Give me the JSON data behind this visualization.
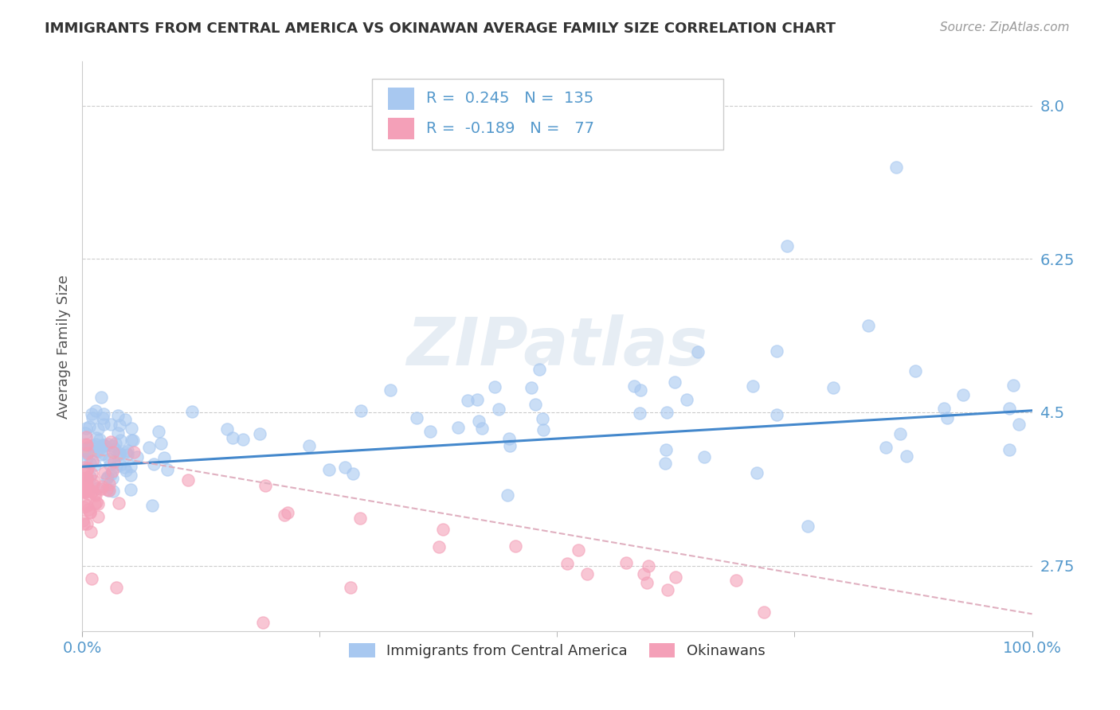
{
  "title": "IMMIGRANTS FROM CENTRAL AMERICA VS OKINAWAN AVERAGE FAMILY SIZE CORRELATION CHART",
  "source": "Source: ZipAtlas.com",
  "ylabel": "Average Family Size",
  "xlim": [
    0,
    1
  ],
  "ylim": [
    2.0,
    8.5
  ],
  "yticks": [
    2.75,
    4.5,
    6.25,
    8.0
  ],
  "xticklabels": [
    "0.0%",
    "100.0%"
  ],
  "watermark": "ZIPatlas",
  "legend1_label": "Immigrants from Central America",
  "legend2_label": "Okinawans",
  "R1": 0.245,
  "N1": 135,
  "R2": -0.189,
  "N2": 77,
  "color_blue": "#a8c8f0",
  "color_pink": "#f4a0b8",
  "line_color_blue": "#4488cc",
  "line_color_pink": "#e0b0c0",
  "background": "#ffffff",
  "grid_color": "#cccccc",
  "title_color": "#333333",
  "axis_label_color": "#555555",
  "tick_label_color": "#5599cc",
  "blue_line_x": [
    0.0,
    1.0
  ],
  "blue_line_y": [
    3.88,
    4.52
  ],
  "pink_line_x": [
    0.0,
    1.0
  ],
  "pink_line_y": [
    4.05,
    2.2
  ]
}
